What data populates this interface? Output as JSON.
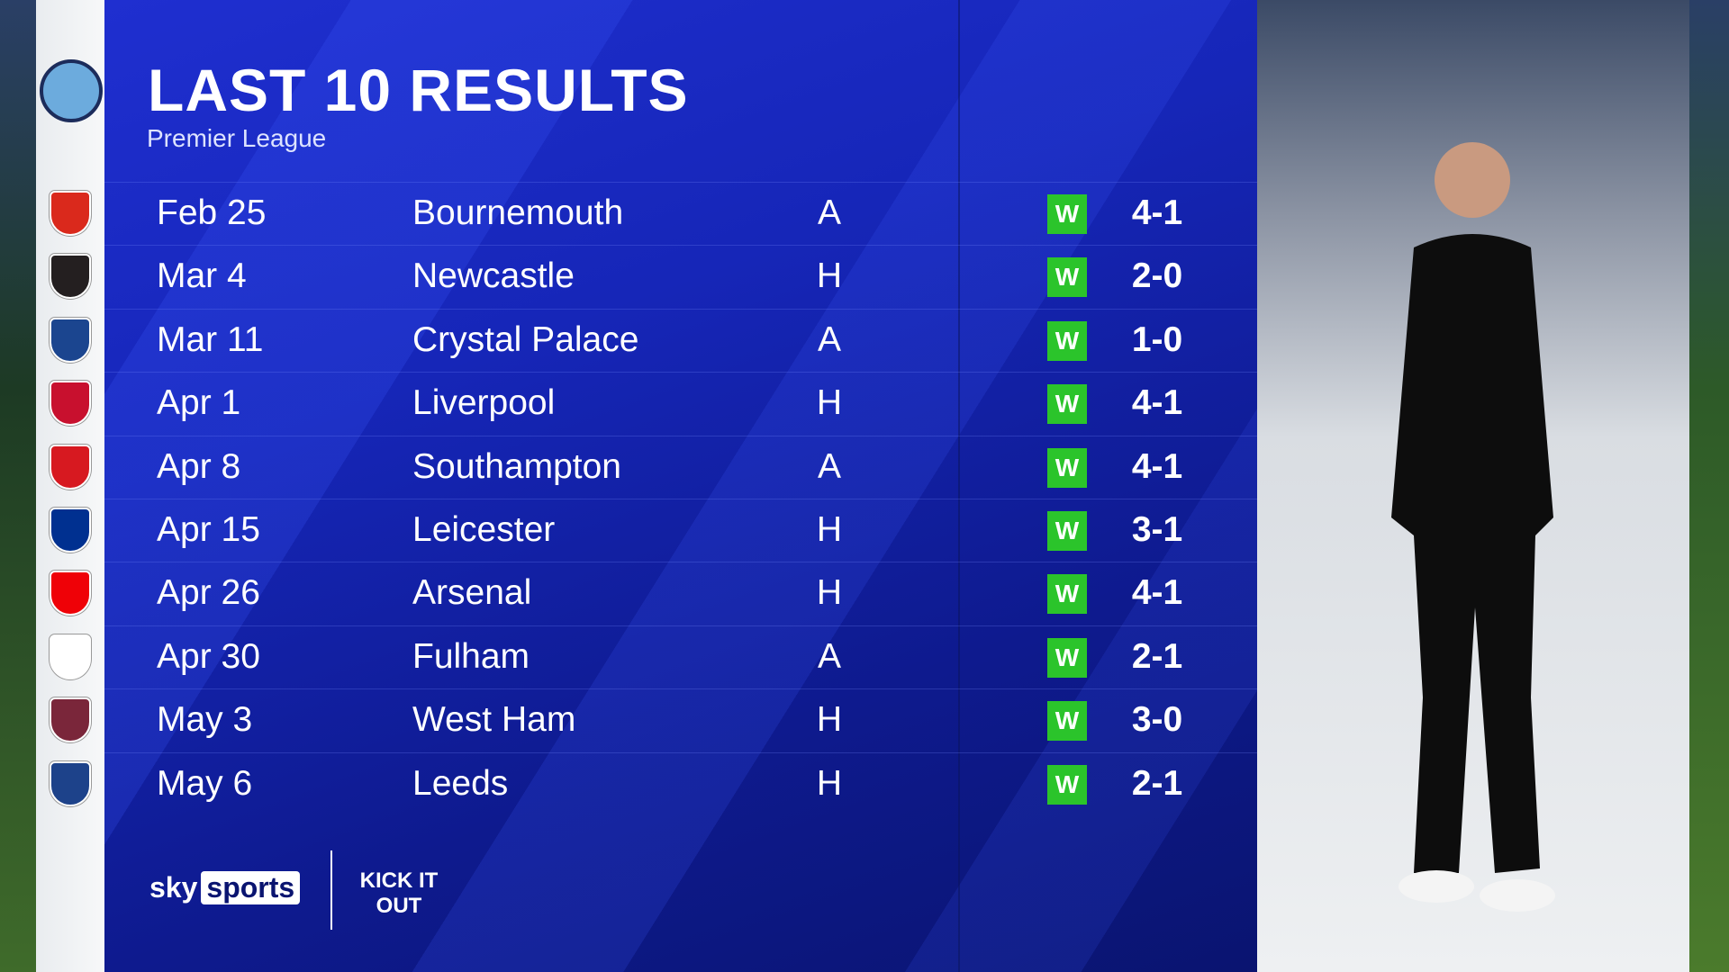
{
  "header": {
    "title": "LAST 10 RESULTS",
    "subtitle": "Premier League"
  },
  "results": [
    {
      "date": "Feb 25",
      "opponent": "Bournemouth",
      "venue": "A",
      "result": "W",
      "score": "4-1",
      "crest_color": "#da291c"
    },
    {
      "date": "Mar 4",
      "opponent": "Newcastle",
      "venue": "H",
      "result": "W",
      "score": "2-0",
      "crest_color": "#241f20"
    },
    {
      "date": "Mar 11",
      "opponent": "Crystal Palace",
      "venue": "A",
      "result": "W",
      "score": "1-0",
      "crest_color": "#1b458f"
    },
    {
      "date": "Apr 1",
      "opponent": "Liverpool",
      "venue": "H",
      "result": "W",
      "score": "4-1",
      "crest_color": "#c8102e"
    },
    {
      "date": "Apr 8",
      "opponent": "Southampton",
      "venue": "A",
      "result": "W",
      "score": "4-1",
      "crest_color": "#d71920"
    },
    {
      "date": "Apr 15",
      "opponent": "Leicester",
      "venue": "H",
      "result": "W",
      "score": "3-1",
      "crest_color": "#003090"
    },
    {
      "date": "Apr 26",
      "opponent": "Arsenal",
      "venue": "H",
      "result": "W",
      "score": "4-1",
      "crest_color": "#ef0107"
    },
    {
      "date": "Apr 30",
      "opponent": "Fulham",
      "venue": "A",
      "result": "W",
      "score": "2-1",
      "crest_color": "#ffffff"
    },
    {
      "date": "May 3",
      "opponent": "West Ham",
      "venue": "H",
      "result": "W",
      "score": "3-0",
      "crest_color": "#7a263a"
    },
    {
      "date": "May 6",
      "opponent": "Leeds",
      "venue": "H",
      "result": "W",
      "score": "2-1",
      "crest_color": "#1d428a"
    }
  ],
  "colors": {
    "panel": "#1626b8",
    "win": "#2bc42b"
  },
  "branding": {
    "broadcaster": "sky sports",
    "campaign": "KICK IT OUT"
  }
}
